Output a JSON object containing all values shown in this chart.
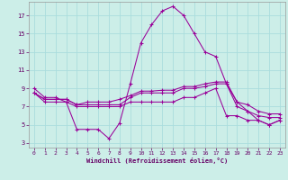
{
  "xlabel": "Windchill (Refroidissement éolien,°C)",
  "background_color": "#cceee8",
  "grid_color": "#aadddd",
  "line_color": "#990099",
  "x": [
    0,
    1,
    2,
    3,
    4,
    5,
    6,
    7,
    8,
    9,
    10,
    11,
    12,
    13,
    14,
    15,
    16,
    17,
    18,
    19,
    20,
    21,
    22,
    23
  ],
  "line1": [
    9.0,
    8.0,
    8.0,
    7.5,
    4.5,
    4.5,
    4.5,
    3.5,
    5.2,
    9.5,
    14.0,
    16.0,
    17.5,
    18.0,
    17.0,
    15.0,
    13.0,
    12.5,
    9.5,
    7.5,
    6.5,
    5.5,
    5.0,
    5.5
  ],
  "line2": [
    8.5,
    7.8,
    7.8,
    7.8,
    7.2,
    7.5,
    7.5,
    7.5,
    7.8,
    8.2,
    8.7,
    8.7,
    8.8,
    8.8,
    9.2,
    9.2,
    9.5,
    9.7,
    9.7,
    7.5,
    7.2,
    6.5,
    6.2,
    6.2
  ],
  "line3": [
    8.5,
    7.8,
    7.8,
    7.8,
    7.2,
    7.2,
    7.2,
    7.2,
    7.2,
    8.0,
    8.5,
    8.5,
    8.5,
    8.5,
    9.0,
    9.0,
    9.2,
    9.5,
    9.5,
    7.0,
    6.5,
    6.0,
    5.8,
    5.8
  ],
  "line4": [
    8.5,
    7.5,
    7.5,
    7.5,
    7.0,
    7.0,
    7.0,
    7.0,
    7.0,
    7.5,
    7.5,
    7.5,
    7.5,
    7.5,
    8.0,
    8.0,
    8.5,
    9.0,
    6.0,
    6.0,
    5.5,
    5.5,
    5.0,
    5.5
  ],
  "ylim": [
    3,
    18
  ],
  "xlim": [
    -0.5,
    23.5
  ],
  "yticks": [
    3,
    5,
    7,
    9,
    11,
    13,
    15,
    17
  ],
  "xticks": [
    0,
    1,
    2,
    3,
    4,
    5,
    6,
    7,
    8,
    9,
    10,
    11,
    12,
    13,
    14,
    15,
    16,
    17,
    18,
    19,
    20,
    21,
    22,
    23
  ]
}
